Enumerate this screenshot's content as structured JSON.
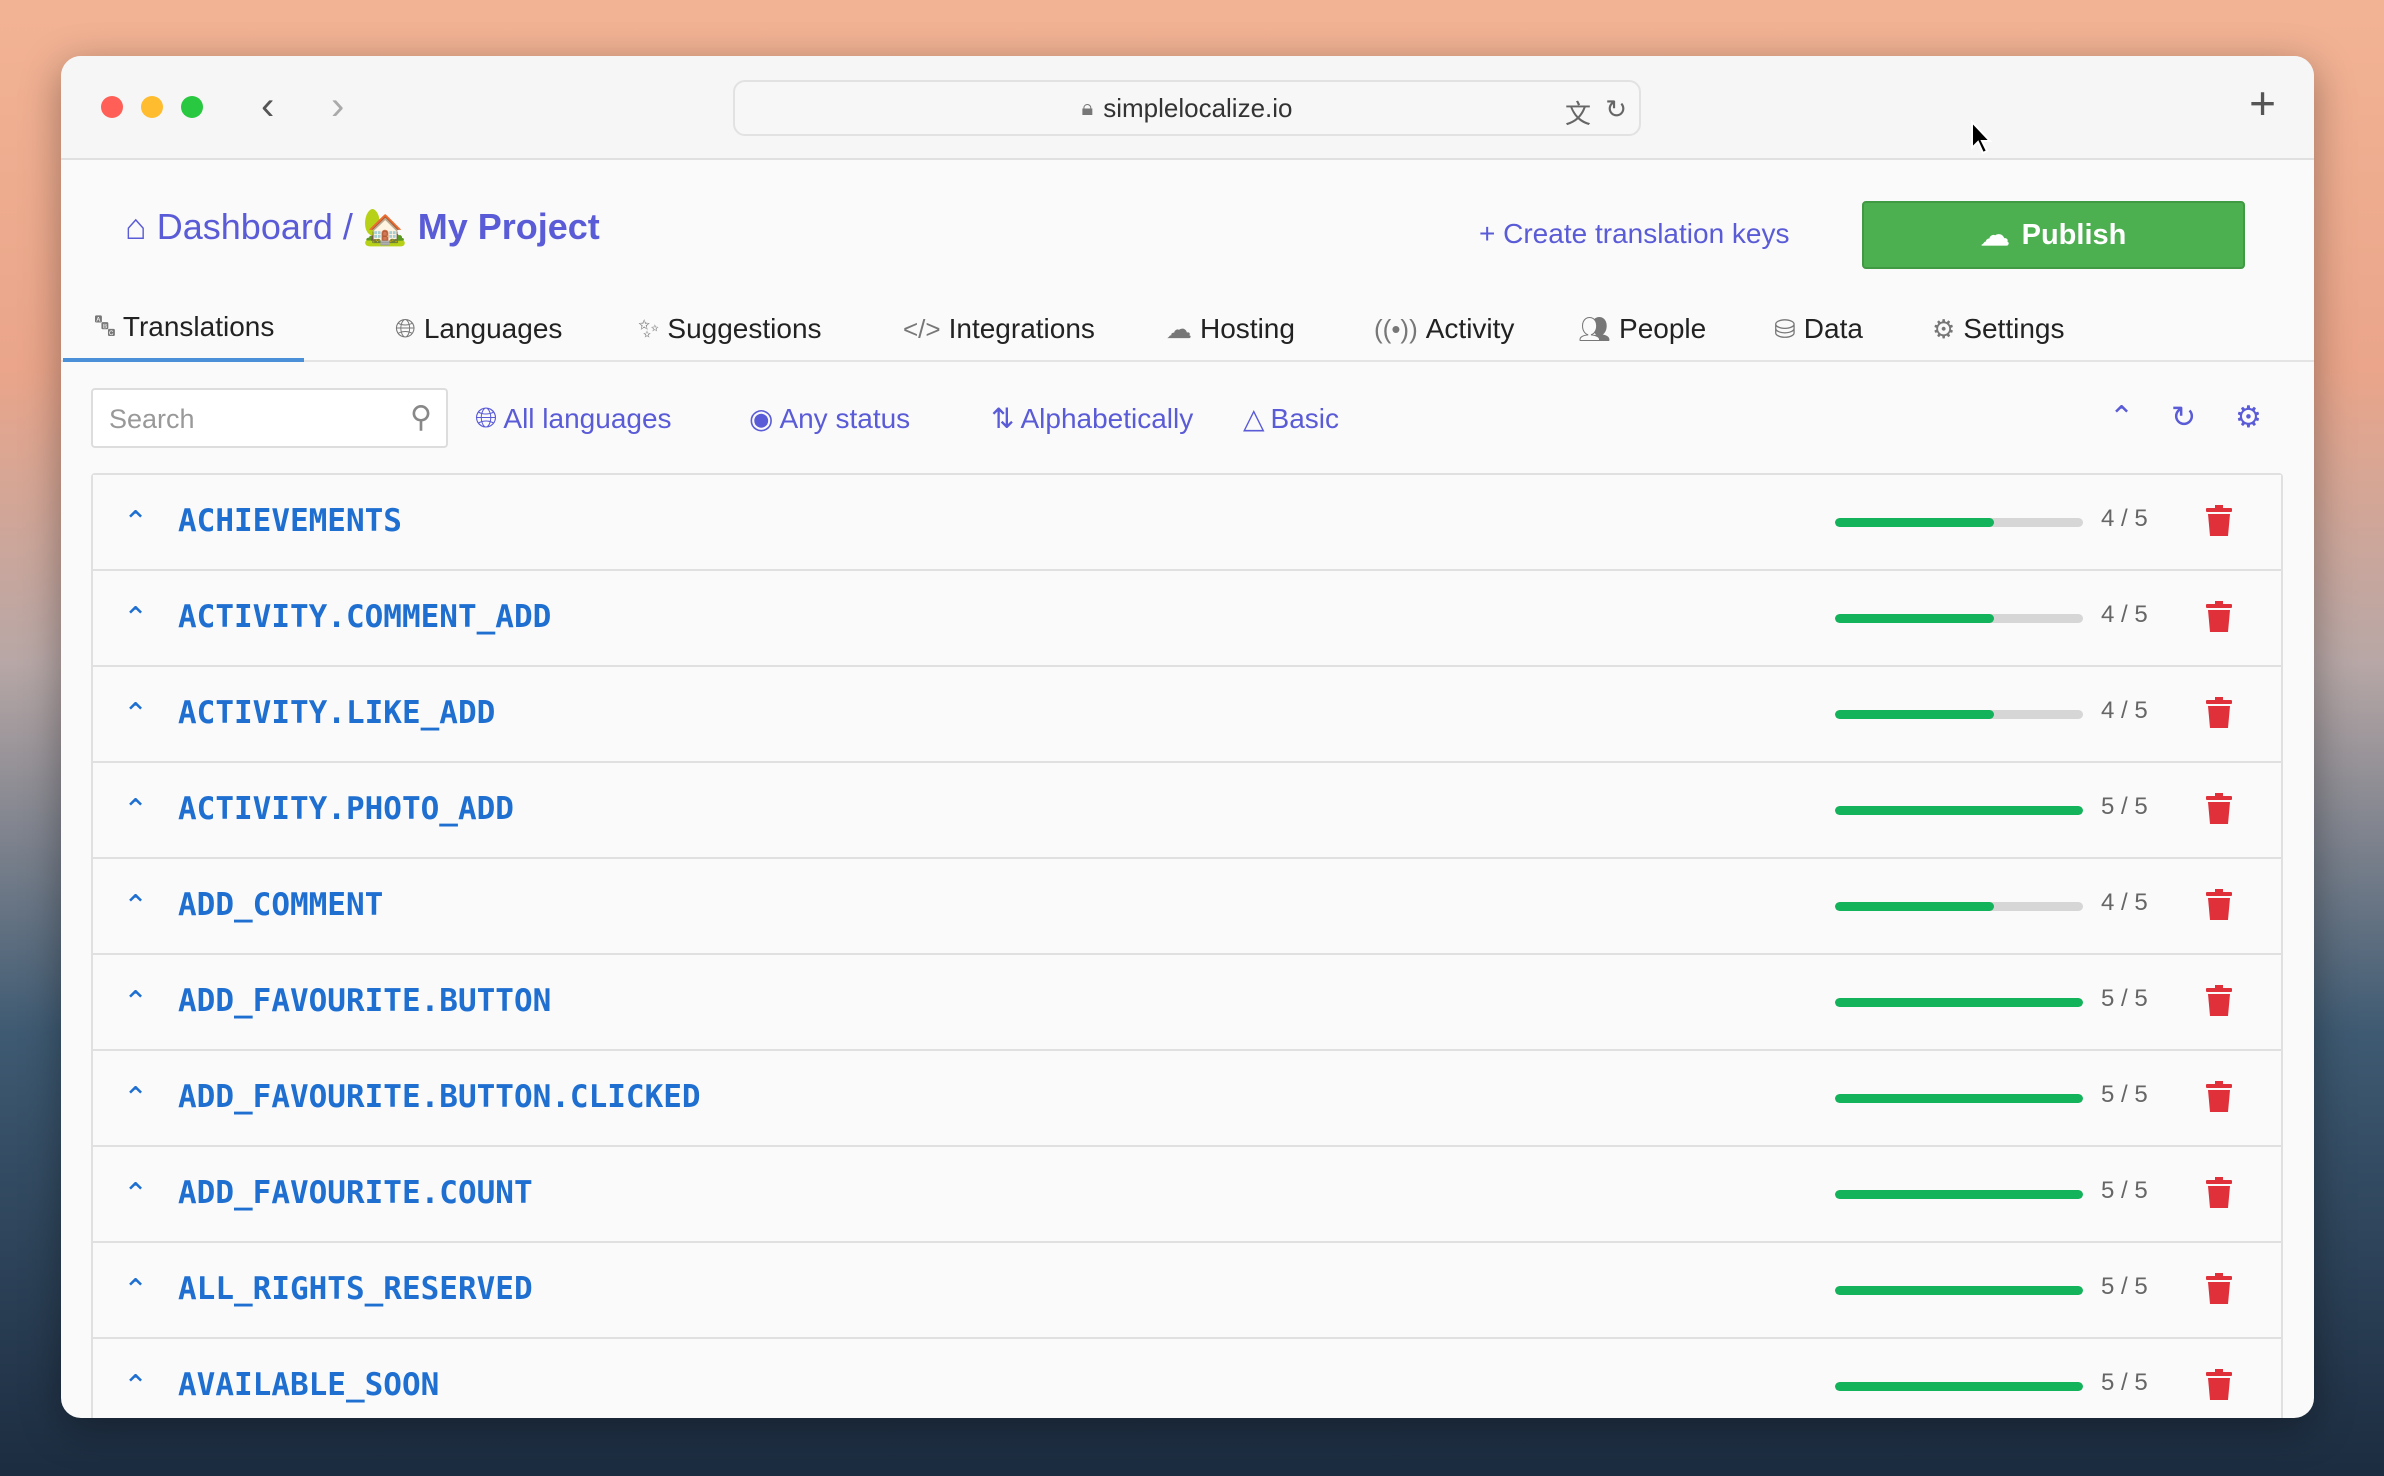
{
  "browser": {
    "url": "simplelocalize.io"
  },
  "header": {
    "dashboard": "Dashboard",
    "separator": "/",
    "project": "My Project",
    "create_keys": "Create translation keys",
    "publish": "Publish"
  },
  "tabs": [
    {
      "label": "Translations",
      "icon": "translate-icon",
      "active": true
    },
    {
      "label": "Languages",
      "icon": "globe-icon"
    },
    {
      "label": "Suggestions",
      "icon": "sparkle-icon"
    },
    {
      "label": "Integrations",
      "icon": "code-icon"
    },
    {
      "label": "Hosting",
      "icon": "cloud-icon"
    },
    {
      "label": "Activity",
      "icon": "broadcast-icon"
    },
    {
      "label": "People",
      "icon": "people-icon"
    },
    {
      "label": "Data",
      "icon": "database-icon"
    },
    {
      "label": "Settings",
      "icon": "gear-icon"
    }
  ],
  "toolbar": {
    "search_placeholder": "Search",
    "languages": "All languages",
    "status": "Any status",
    "sort": "Alphabetically",
    "view": "Basic"
  },
  "colors": {
    "accent": "#5a5bd6",
    "key": "#1f6fd1",
    "publish": "#4caf50",
    "progress": "#12b35a",
    "delete": "#e0303a"
  },
  "rows": [
    {
      "key": "ACHIEVEMENTS",
      "done": 4,
      "total": 5,
      "count": "4 / 5"
    },
    {
      "key": "ACTIVITY.COMMENT_ADD",
      "done": 4,
      "total": 5,
      "count": "4 / 5"
    },
    {
      "key": "ACTIVITY.LIKE_ADD",
      "done": 4,
      "total": 5,
      "count": "4 / 5"
    },
    {
      "key": "ACTIVITY.PHOTO_ADD",
      "done": 5,
      "total": 5,
      "count": "5 / 5"
    },
    {
      "key": "ADD_COMMENT",
      "done": 4,
      "total": 5,
      "count": "4 / 5"
    },
    {
      "key": "ADD_FAVOURITE.BUTTON",
      "done": 5,
      "total": 5,
      "count": "5 / 5"
    },
    {
      "key": "ADD_FAVOURITE.BUTTON.CLICKED",
      "done": 5,
      "total": 5,
      "count": "5 / 5"
    },
    {
      "key": "ADD_FAVOURITE.COUNT",
      "done": 5,
      "total": 5,
      "count": "5 / 5"
    },
    {
      "key": "ALL_RIGHTS_RESERVED",
      "done": 5,
      "total": 5,
      "count": "5 / 5"
    },
    {
      "key": "AVAILABLE_SOON",
      "done": 5,
      "total": 5,
      "count": "5 / 5"
    }
  ]
}
